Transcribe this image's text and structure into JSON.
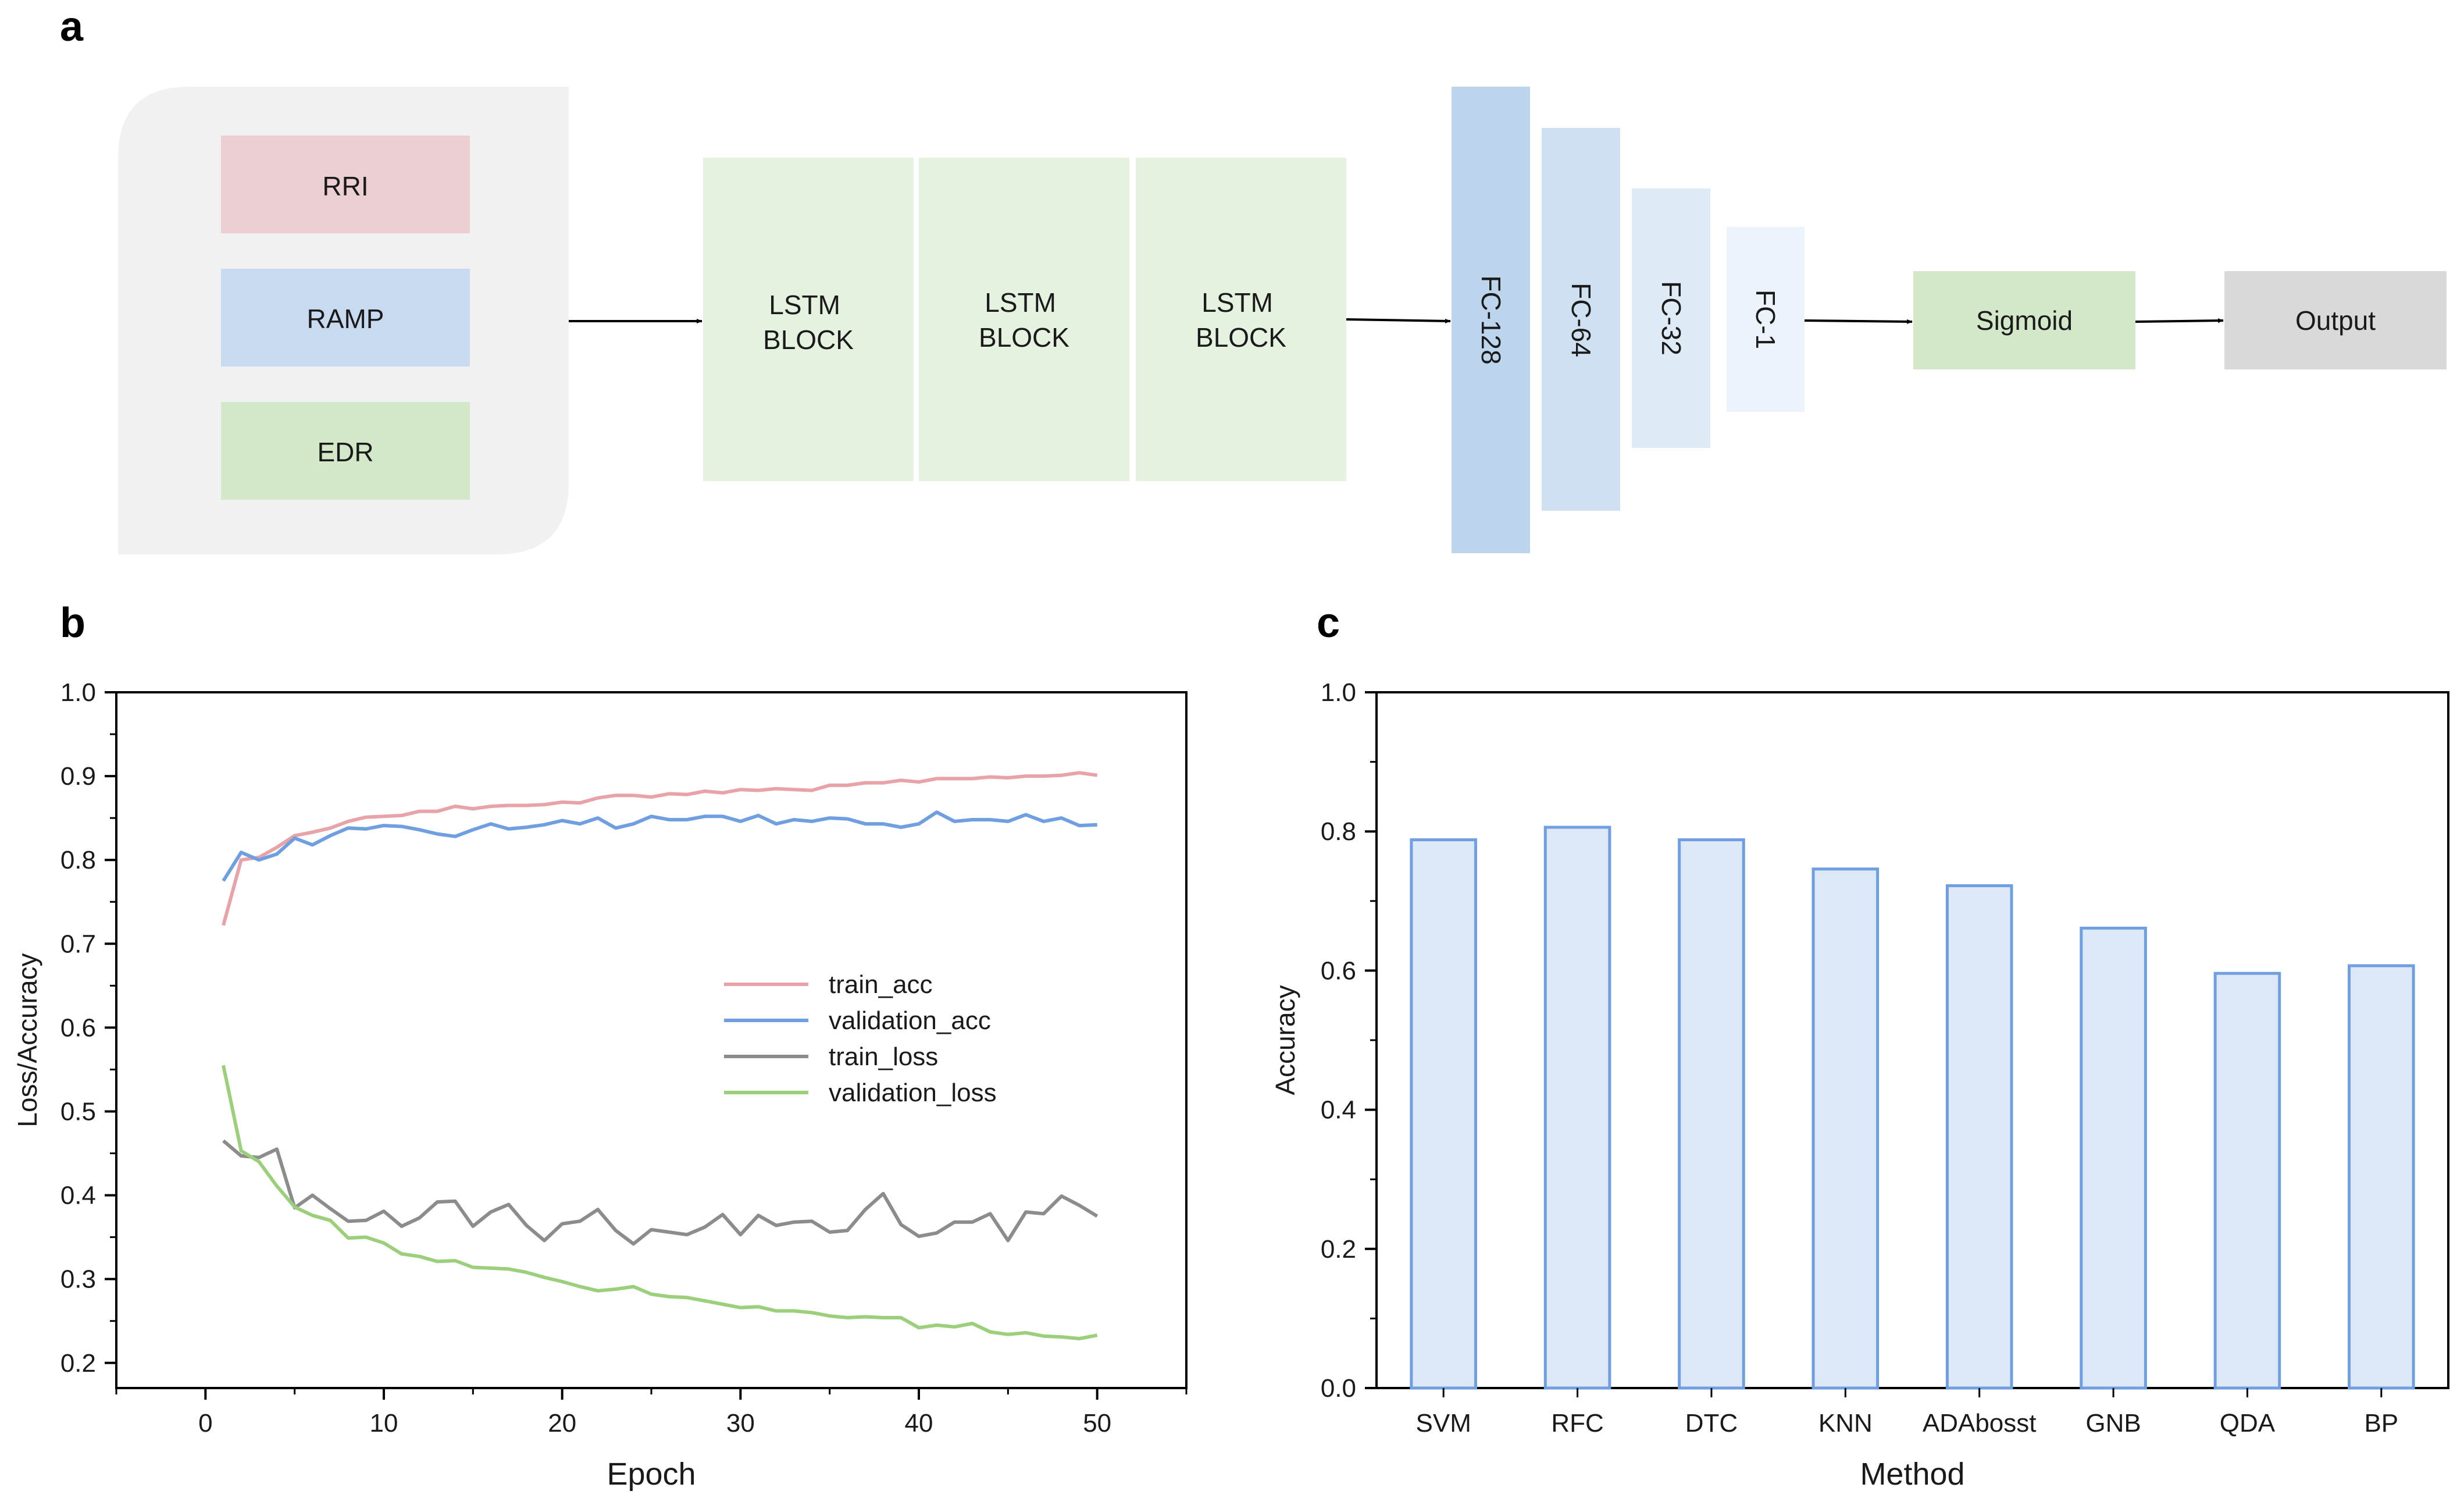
{
  "panels": {
    "a": "a",
    "b": "b",
    "c": "c"
  },
  "architecture": {
    "inputs": [
      {
        "label": "RRI",
        "color": "#ebcfd3"
      },
      {
        "label": "RAMP",
        "color": "#c8daf0"
      },
      {
        "label": "EDR",
        "color": "#d3e8c9"
      }
    ],
    "input_panel_color": "#f1f1f1",
    "lstm_blocks": [
      {
        "line1": "LSTM",
        "line2": "BLOCK"
      },
      {
        "line1": "LSTM",
        "line2": "BLOCK"
      },
      {
        "line1": "LSTM",
        "line2": "BLOCK"
      }
    ],
    "lstm_color": "#e6f2e0",
    "fc_layers": [
      {
        "label": "FC-128",
        "color": "#bcd4ec"
      },
      {
        "label": "FC-64",
        "color": "#cee0f2"
      },
      {
        "label": "FC-32",
        "color": "#deeaf6"
      },
      {
        "label": "FC-1",
        "color": "#ecf3fa"
      }
    ],
    "sigmoid": {
      "label": "Sigmoid",
      "color": "#d3e8c9"
    },
    "output": {
      "label": "Output",
      "color": "#d9d9d9"
    }
  },
  "chart_data": [
    {
      "type": "line",
      "panel": "b",
      "xlabel": "Epoch",
      "ylabel": "Loss/Accuracy",
      "xlim": [
        -5,
        55
      ],
      "ylim": [
        0.17,
        1.0
      ],
      "xticks": [
        0,
        10,
        20,
        30,
        40,
        50
      ],
      "yticks": [
        0.2,
        0.3,
        0.4,
        0.5,
        0.6,
        0.7,
        0.8,
        0.9,
        1.0
      ],
      "legend_position": "center-right",
      "series": [
        {
          "name": "train_acc",
          "color": "#e8a3a8",
          "values": [
            0.722,
            0.8,
            0.803,
            0.815,
            0.829,
            0.833,
            0.838,
            0.846,
            0.851,
            0.852,
            0.853,
            0.858,
            0.858,
            0.864,
            0.861,
            0.864,
            0.865,
            0.865,
            0.866,
            0.869,
            0.868,
            0.874,
            0.877,
            0.877,
            0.875,
            0.879,
            0.878,
            0.882,
            0.88,
            0.884,
            0.883,
            0.885,
            0.884,
            0.883,
            0.889,
            0.889,
            0.892,
            0.892,
            0.895,
            0.893,
            0.897,
            0.897,
            0.897,
            0.899,
            0.898,
            0.9,
            0.9,
            0.901,
            0.904,
            0.901
          ]
        },
        {
          "name": "validation_acc",
          "color": "#6f9fe0",
          "values": [
            0.775,
            0.809,
            0.8,
            0.807,
            0.826,
            0.818,
            0.829,
            0.838,
            0.837,
            0.841,
            0.84,
            0.836,
            0.831,
            0.828,
            0.836,
            0.843,
            0.837,
            0.839,
            0.842,
            0.847,
            0.843,
            0.85,
            0.838,
            0.843,
            0.852,
            0.848,
            0.848,
            0.852,
            0.852,
            0.846,
            0.853,
            0.843,
            0.848,
            0.846,
            0.85,
            0.849,
            0.843,
            0.843,
            0.839,
            0.843,
            0.857,
            0.846,
            0.848,
            0.848,
            0.846,
            0.854,
            0.846,
            0.85,
            0.841,
            0.842
          ]
        },
        {
          "name": "train_loss",
          "color": "#8c8c8c",
          "values": [
            0.465,
            0.447,
            0.445,
            0.455,
            0.385,
            0.4,
            0.384,
            0.369,
            0.37,
            0.381,
            0.363,
            0.373,
            0.392,
            0.393,
            0.363,
            0.38,
            0.389,
            0.364,
            0.346,
            0.366,
            0.369,
            0.383,
            0.358,
            0.342,
            0.359,
            0.356,
            0.353,
            0.362,
            0.377,
            0.353,
            0.376,
            0.364,
            0.368,
            0.369,
            0.356,
            0.358,
            0.383,
            0.402,
            0.365,
            0.351,
            0.355,
            0.368,
            0.368,
            0.378,
            0.346,
            0.38,
            0.378,
            0.399,
            0.388,
            0.375
          ]
        },
        {
          "name": "validation_loss",
          "color": "#9ccf7c",
          "values": [
            0.555,
            0.453,
            0.44,
            0.411,
            0.386,
            0.376,
            0.37,
            0.349,
            0.35,
            0.343,
            0.33,
            0.327,
            0.321,
            0.322,
            0.314,
            0.313,
            0.312,
            0.308,
            0.302,
            0.297,
            0.291,
            0.286,
            0.288,
            0.291,
            0.282,
            0.279,
            0.278,
            0.274,
            0.27,
            0.266,
            0.267,
            0.262,
            0.262,
            0.26,
            0.256,
            0.254,
            0.255,
            0.254,
            0.254,
            0.242,
            0.245,
            0.243,
            0.247,
            0.237,
            0.234,
            0.236,
            0.232,
            0.231,
            0.229,
            0.233
          ]
        }
      ]
    },
    {
      "type": "bar",
      "panel": "c",
      "xlabel": "Method",
      "ylabel": "Accuracy",
      "ylim": [
        0,
        1.0
      ],
      "yticks": [
        0.0,
        0.2,
        0.4,
        0.6,
        0.8,
        1.0
      ],
      "bar_fill": "#dce8f6",
      "bar_stroke": "#6f9fe0",
      "categories": [
        "SVM",
        "RFC",
        "DTC",
        "KNN",
        "ADAbosst",
        "GNB",
        "QDA",
        "BP"
      ],
      "values": [
        0.788,
        0.806,
        0.788,
        0.746,
        0.722,
        0.661,
        0.596,
        0.607
      ]
    }
  ]
}
